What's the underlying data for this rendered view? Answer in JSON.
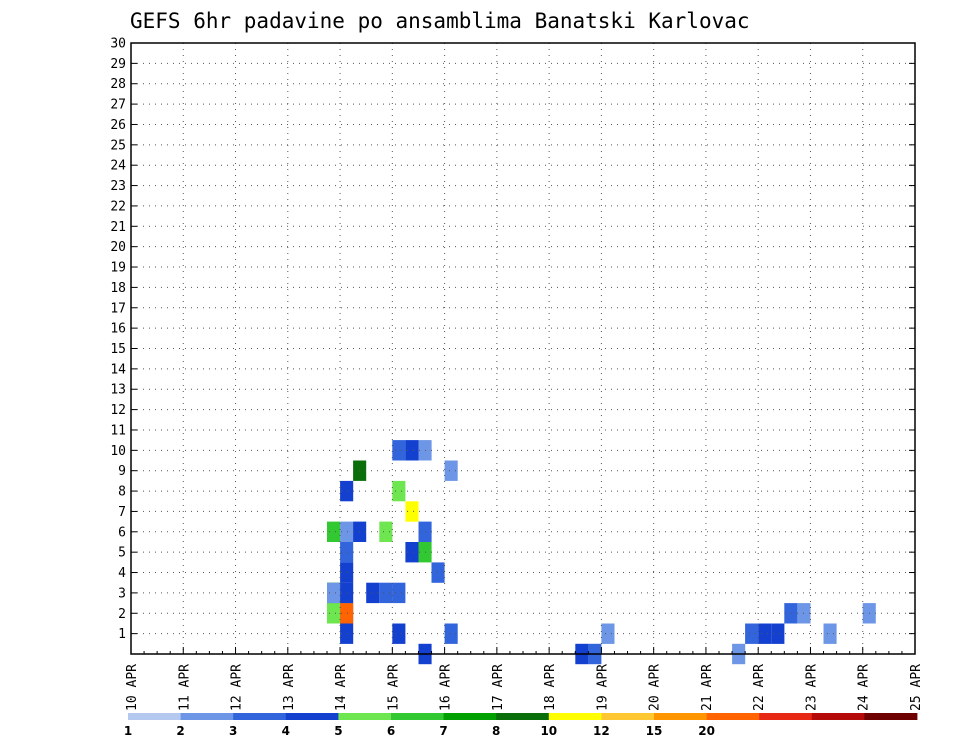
{
  "chart_data": {
    "type": "heatmap",
    "title": "GEFS 6hr padavine po ansamblima Banatski Karlovac",
    "x_tick_labels": [
      "10 APR",
      "11 APR",
      "12 APR",
      "13 APR",
      "14 APR",
      "15 APR",
      "16 APR",
      "17 APR",
      "18 APR",
      "19 APR",
      "20 APR",
      "21 APR",
      "22 APR",
      "23 APR",
      "24 APR",
      "25 APR"
    ],
    "y_tick_labels": [
      "1",
      "2",
      "3",
      "4",
      "5",
      "6",
      "7",
      "8",
      "9",
      "10",
      "11",
      "12",
      "13",
      "14",
      "15",
      "16",
      "17",
      "18",
      "19",
      "20",
      "21",
      "22",
      "23",
      "24",
      "25",
      "26",
      "27",
      "28",
      "29",
      "30"
    ],
    "y_range": [
      0,
      30
    ],
    "grid": true,
    "time_step_hours": 6,
    "colorbar": {
      "tick_labels": [
        "1",
        "2",
        "3",
        "4",
        "5",
        "6",
        "7",
        "8",
        "10",
        "12",
        "15",
        "20"
      ],
      "colors": [
        "#b4c8f0",
        "#6e96e6",
        "#3264dc",
        "#1440d0",
        "#6ee650",
        "#32c832",
        "#00a000",
        "#0a6e0a",
        "#ffff00",
        "#ffc832",
        "#ff9600",
        "#ff6400",
        "#e62814",
        "#b40a0a",
        "#6e0000"
      ]
    },
    "cells": [
      {
        "t": 15.5,
        "m": 0,
        "v": 3
      },
      {
        "t": 15.0,
        "m": 1,
        "v": 3
      },
      {
        "t": 15.75,
        "m": 4,
        "v": 2
      },
      {
        "t": 16.0,
        "m": 1,
        "v": 2
      },
      {
        "t": 18.5,
        "m": 0,
        "v": 3
      },
      {
        "t": 18.75,
        "m": 0,
        "v": 2
      },
      {
        "t": 19.0,
        "m": 1,
        "v": 1
      },
      {
        "t": 21.5,
        "m": 0,
        "v": 1
      },
      {
        "t": 21.75,
        "m": 1,
        "v": 2
      },
      {
        "t": 22.0,
        "m": 1,
        "v": 3
      },
      {
        "t": 22.25,
        "m": 1,
        "v": 3
      },
      {
        "t": 22.5,
        "m": 2,
        "v": 2
      },
      {
        "t": 22.75,
        "m": 2,
        "v": 1
      },
      {
        "t": 23.25,
        "m": 1,
        "v": 1
      },
      {
        "t": 24.0,
        "m": 2,
        "v": 1
      },
      {
        "t": 14.0,
        "m": 1,
        "v": 3
      },
      {
        "t": 14.0,
        "m": 2,
        "v": 1
      },
      {
        "t": 13.75,
        "m": 2,
        "v": 4
      },
      {
        "t": 14.0,
        "m": 2,
        "v": 11
      },
      {
        "t": 13.75,
        "m": 3,
        "v": 6
      },
      {
        "t": 13.75,
        "m": 3,
        "v": 5
      },
      {
        "t": 13.75,
        "m": 3,
        "v": 1
      },
      {
        "t": 15.0,
        "m": 3,
        "v": 2
      },
      {
        "t": 14.75,
        "m": 3,
        "v": 2
      },
      {
        "t": 14.0,
        "m": 3,
        "v": 3
      },
      {
        "t": 14.5,
        "m": 3,
        "v": 3
      },
      {
        "t": 14.0,
        "m": 4,
        "v": 3
      },
      {
        "t": 14.0,
        "m": 5,
        "v": 2
      },
      {
        "t": 13.75,
        "m": 6,
        "v": 5
      },
      {
        "t": 14.0,
        "m": 6,
        "v": 1
      },
      {
        "t": 14.25,
        "m": 6,
        "v": 3
      },
      {
        "t": 15.25,
        "m": 5,
        "v": 3
      },
      {
        "t": 15.5,
        "m": 5,
        "v": 5
      },
      {
        "t": 14.75,
        "m": 6,
        "v": 4
      },
      {
        "t": 15.5,
        "m": 6,
        "v": 2
      },
      {
        "t": 15.25,
        "m": 7,
        "v": 8
      },
      {
        "t": 14.0,
        "m": 8,
        "v": 3
      },
      {
        "t": 15.0,
        "m": 8,
        "v": 4
      },
      {
        "t": 14.25,
        "m": 9,
        "v": 7
      },
      {
        "t": 16.0,
        "m": 9,
        "v": 1
      },
      {
        "t": 15.25,
        "m": 10,
        "v": 3
      },
      {
        "t": 15.5,
        "m": 10,
        "v": 1
      },
      {
        "t": 15.0,
        "m": 10,
        "v": 2
      }
    ]
  }
}
